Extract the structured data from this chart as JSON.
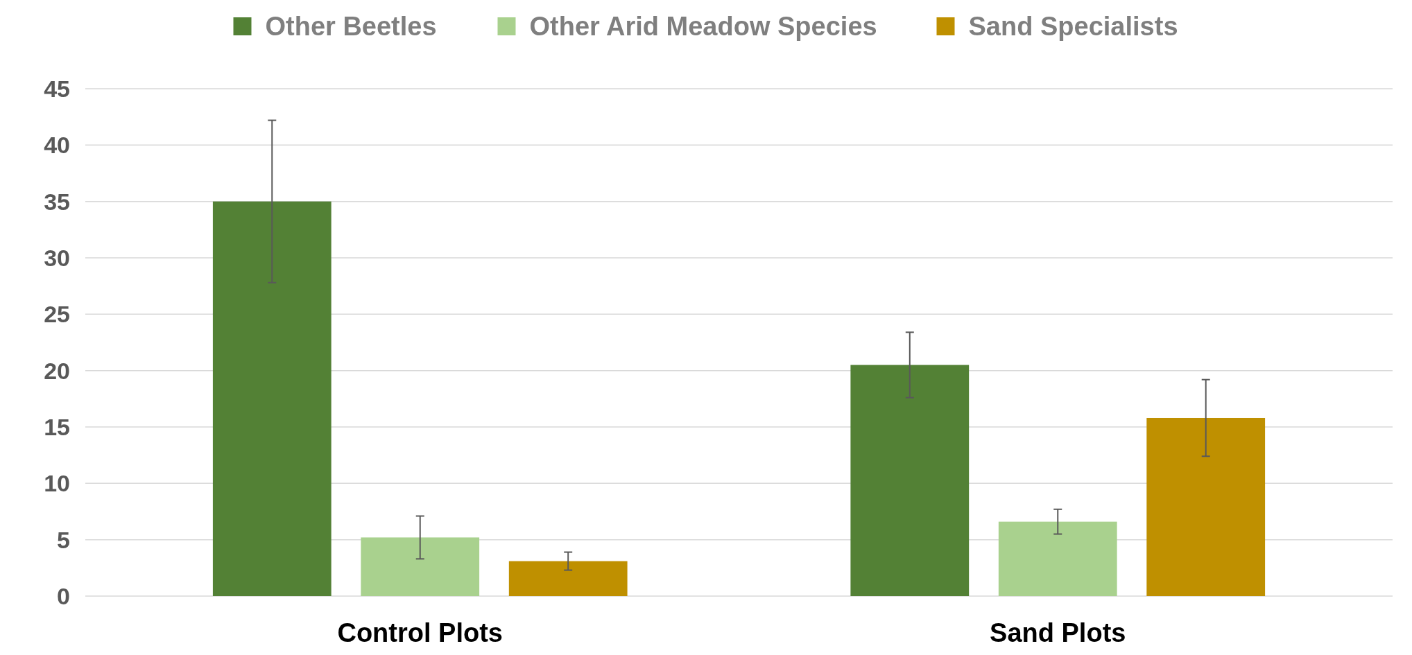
{
  "chart_data": {
    "type": "bar",
    "categories": [
      "Control Plots",
      "Sand Plots"
    ],
    "series": [
      {
        "name": "Other Beetles",
        "color": "#538135",
        "values": [
          35,
          20.5
        ],
        "errors": [
          7.2,
          2.9
        ]
      },
      {
        "name": "Other Arid Meadow Species",
        "color": "#a9d18e",
        "values": [
          5.2,
          6.6
        ],
        "errors": [
          1.9,
          1.1
        ]
      },
      {
        "name": "Sand Specialists",
        "color": "#bf9000",
        "values": [
          3.1,
          15.8
        ],
        "errors": [
          0.8,
          3.4
        ]
      }
    ],
    "ylim": [
      0,
      45
    ],
    "yticks": [
      0,
      5,
      10,
      15,
      20,
      25,
      30,
      35,
      40,
      45
    ],
    "grid": "y",
    "legend": "top"
  }
}
